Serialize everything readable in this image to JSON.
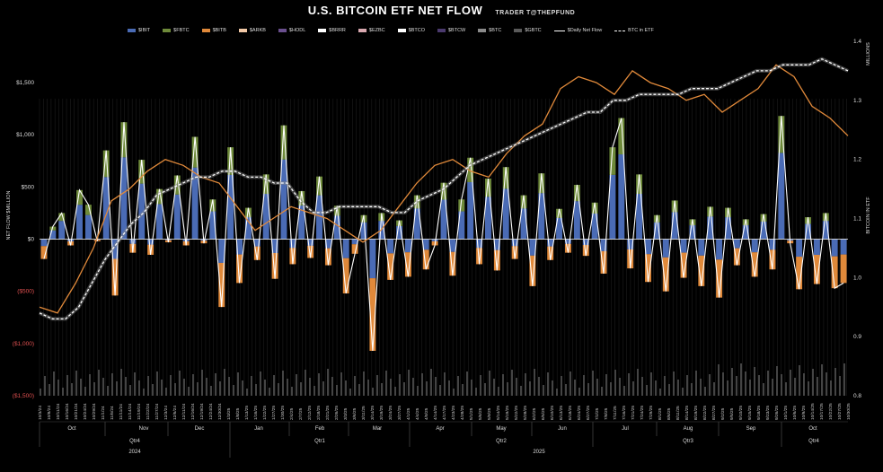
{
  "header": {
    "title": "U.S. BITCOIN ETF NET FLOW",
    "subtitle": "TRADER T@THEPFUND"
  },
  "legend": [
    {
      "label": "$IBIT",
      "color": "#4a6bb5",
      "kind": "bar"
    },
    {
      "label": "$FBTC",
      "color": "#6e8a3a",
      "kind": "bar"
    },
    {
      "label": "$BITB",
      "color": "#e0893a",
      "kind": "bar"
    },
    {
      "label": "$ARKB",
      "color": "#f2c9a6",
      "kind": "bar"
    },
    {
      "label": "$HODL",
      "color": "#6a4f8e",
      "kind": "bar"
    },
    {
      "label": "$BRRR",
      "color": "#ffffff",
      "kind": "bar"
    },
    {
      "label": "$EZBC",
      "color": "#d9a9b0",
      "kind": "bar"
    },
    {
      "label": "$BTCO",
      "color": "#ffffff",
      "kind": "bar"
    },
    {
      "label": "$BTCW",
      "color": "#4b3a6e",
      "kind": "bar"
    },
    {
      "label": "$BTC",
      "color": "#8a8a8a",
      "kind": "bar"
    },
    {
      "label": "$GBTC",
      "color": "#5a5a5a",
      "kind": "bar"
    },
    {
      "label": "$Daily Net Flow",
      "color": "#ffffff",
      "kind": "line"
    },
    {
      "label": "BTC in ETF",
      "color": "#ffffff",
      "kind": "dash"
    }
  ],
  "chart_data": {
    "type": "bar",
    "title": "U.S. BITCOIN ETF NET FLOW",
    "ylabel": "NET FLOW $MILLION",
    "y2label": "BITCOIN IN ETF",
    "y2unit": "MILLIONS",
    "ylim": [
      -1500,
      1500
    ],
    "y2lim": [
      0.8,
      1.4
    ],
    "yticks": [
      "$1,500",
      "$1,000",
      "$500",
      "$0",
      "($500)",
      "($1,000)",
      "($1,500)"
    ],
    "y2ticks": [
      "1.4",
      "1.3",
      "1.2",
      "1.1",
      "1.0",
      "0.9",
      "0.8"
    ],
    "months": [
      "Oct",
      "Nov",
      "Dec",
      "Jan",
      "Feb",
      "Mar",
      "Apr",
      "May",
      "Jun",
      "Jul",
      "Aug",
      "Sep",
      "Oct"
    ],
    "quarters": [
      "Qtr4",
      "Qtr1",
      "Qtr2",
      "Qtr3",
      "Qtr4"
    ],
    "years": [
      "2024",
      "2025"
    ],
    "x_date_labels": [
      "10/3/24",
      "10/8/24",
      "10/11/24",
      "10/16/24",
      "10/21/24",
      "10/24/24",
      "10/29/24",
      "11/1/24",
      "11/6/24",
      "11/11/24",
      "11/14/24",
      "11/19/24",
      "11/22/24",
      "11/27/24",
      "12/3/24",
      "12/6/24",
      "12/11/24",
      "12/16/24",
      "12/19/24",
      "12/24/24",
      "12/30/24",
      "1/3/25",
      "1/8/25",
      "1/13/25",
      "1/16/25",
      "1/22/25",
      "1/27/25",
      "1/30/25",
      "2/4/25",
      "2/7/25",
      "2/12/25",
      "2/18/25",
      "2/21/25",
      "2/26/25",
      "3/3/25",
      "3/6/25",
      "3/11/25",
      "3/14/25",
      "3/19/25",
      "3/24/25",
      "3/27/25",
      "4/1/25",
      "4/4/25",
      "4/9/25",
      "4/14/25",
      "4/17/25",
      "4/23/25",
      "4/28/25",
      "5/1/25",
      "5/6/25",
      "5/9/25",
      "5/14/25",
      "5/19/25",
      "5/22/25",
      "5/28/25",
      "6/2/25",
      "6/5/25",
      "6/10/25",
      "6/13/25",
      "6/18/25",
      "6/24/25",
      "6/27/25",
      "7/2/25",
      "7/8/25",
      "7/11/25",
      "7/16/25",
      "7/21/25",
      "7/24/25",
      "7/29/25",
      "8/1/25",
      "8/6/25",
      "8/11/25",
      "8/14/25",
      "8/19/25",
      "8/22/25",
      "8/27/25",
      "9/2/25",
      "9/5/25",
      "9/10/25",
      "9/15/25",
      "9/18/25",
      "9/23/25",
      "9/26/25",
      "10/1/25",
      "10/6/25",
      "10/9/25",
      "10/14/25",
      "10/17/25",
      "10/22/25",
      "10/27/25",
      "10/30/25"
    ],
    "daily_net_flow_millions": [
      -190,
      120,
      250,
      -60,
      470,
      330,
      -20,
      850,
      -540,
      1120,
      -130,
      760,
      -150,
      480,
      -30,
      610,
      -60,
      980,
      -40,
      380,
      -650,
      880,
      -420,
      300,
      -200,
      620,
      -380,
      1090,
      -240,
      460,
      -180,
      600,
      -250,
      320,
      -520,
      -140,
      230,
      -1070,
      250,
      -390,
      180,
      -360,
      420,
      -290,
      -60,
      540,
      -350,
      380,
      780,
      -240,
      580,
      -300,
      690,
      -190,
      420,
      -450,
      630,
      -200,
      290,
      -130,
      520,
      -160,
      350,
      -330,
      880,
      1160,
      -280,
      620,
      -410,
      230,
      -500,
      370,
      -370,
      190,
      -450,
      310,
      -560,
      300,
      -250,
      190,
      -360,
      240,
      -290,
      1180,
      -40,
      -480,
      210,
      -430,
      250,
      -470,
      -420
    ],
    "btc_in_etf_millions": [
      0.94,
      0.93,
      0.93,
      0.95,
      0.99,
      1.03,
      1.06,
      1.09,
      1.11,
      1.14,
      1.15,
      1.16,
      1.17,
      1.17,
      1.18,
      1.18,
      1.17,
      1.17,
      1.16,
      1.16,
      1.13,
      1.11,
      1.11,
      1.12,
      1.12,
      1.12,
      1.12,
      1.11,
      1.11,
      1.13,
      1.14,
      1.15,
      1.17,
      1.19,
      1.2,
      1.21,
      1.22,
      1.23,
      1.24,
      1.25,
      1.26,
      1.27,
      1.28,
      1.28,
      1.3,
      1.3,
      1.31,
      1.31,
      1.31,
      1.31,
      1.32,
      1.32,
      1.32,
      1.33,
      1.34,
      1.35,
      1.35,
      1.36,
      1.36,
      1.36,
      1.37,
      1.36,
      1.35
    ],
    "btc_price_overlay": [
      0.95,
      0.94,
      0.99,
      1.05,
      1.13,
      1.15,
      1.18,
      1.2,
      1.19,
      1.17,
      1.16,
      1.12,
      1.08,
      1.1,
      1.12,
      1.11,
      1.1,
      1.08,
      1.06,
      1.08,
      1.12,
      1.16,
      1.19,
      1.2,
      1.18,
      1.17,
      1.21,
      1.24,
      1.26,
      1.32,
      1.34,
      1.33,
      1.31,
      1.35,
      1.33,
      1.32,
      1.3,
      1.31,
      1.28,
      1.3,
      1.32,
      1.36,
      1.34,
      1.29,
      1.27,
      1.24
    ]
  }
}
